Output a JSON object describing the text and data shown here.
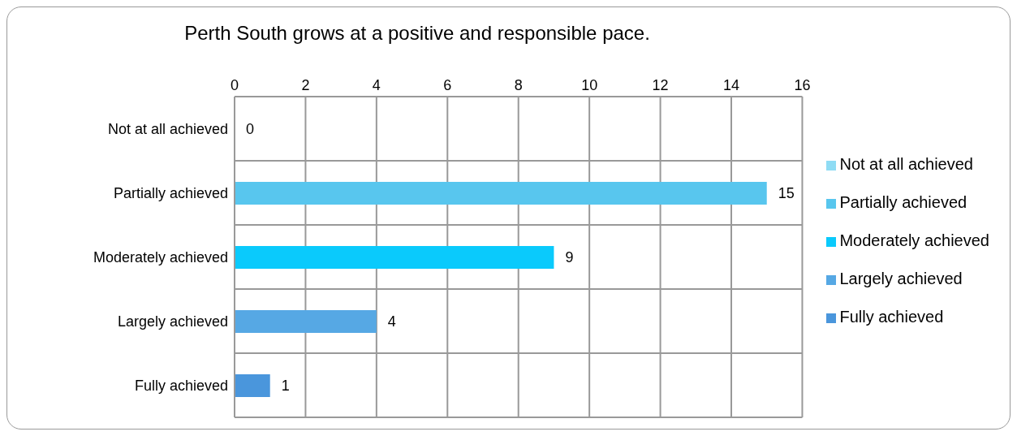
{
  "chart_data": {
    "type": "bar",
    "orientation": "horizontal",
    "stacked": true,
    "title": "Perth South grows at a positive and responsible pace.",
    "categories": [
      "Not at all achieved",
      "Partially achieved",
      "Moderately achieved",
      "Largely achieved",
      "Fully achieved"
    ],
    "series": [
      {
        "name": "Not at all achieved",
        "color": "#8fdcf4",
        "values": [
          0,
          null,
          null,
          null,
          null
        ]
      },
      {
        "name": "Partially achieved",
        "color": "#58c6ee",
        "values": [
          null,
          15,
          null,
          null,
          null
        ]
      },
      {
        "name": "Moderately achieved",
        "color": "#0acafc",
        "values": [
          null,
          null,
          9,
          null,
          null
        ]
      },
      {
        "name": "Largely achieved",
        "color": "#56a8e4",
        "values": [
          null,
          null,
          null,
          4,
          null
        ]
      },
      {
        "name": "Fully achieved",
        "color": "#4a96dc",
        "values": [
          null,
          null,
          null,
          null,
          1
        ]
      }
    ],
    "xlim": [
      0,
      16
    ],
    "xticks": [
      0,
      2,
      4,
      6,
      8,
      10,
      12,
      14,
      16
    ],
    "grid": true,
    "legend": "right",
    "data_labels": true
  }
}
